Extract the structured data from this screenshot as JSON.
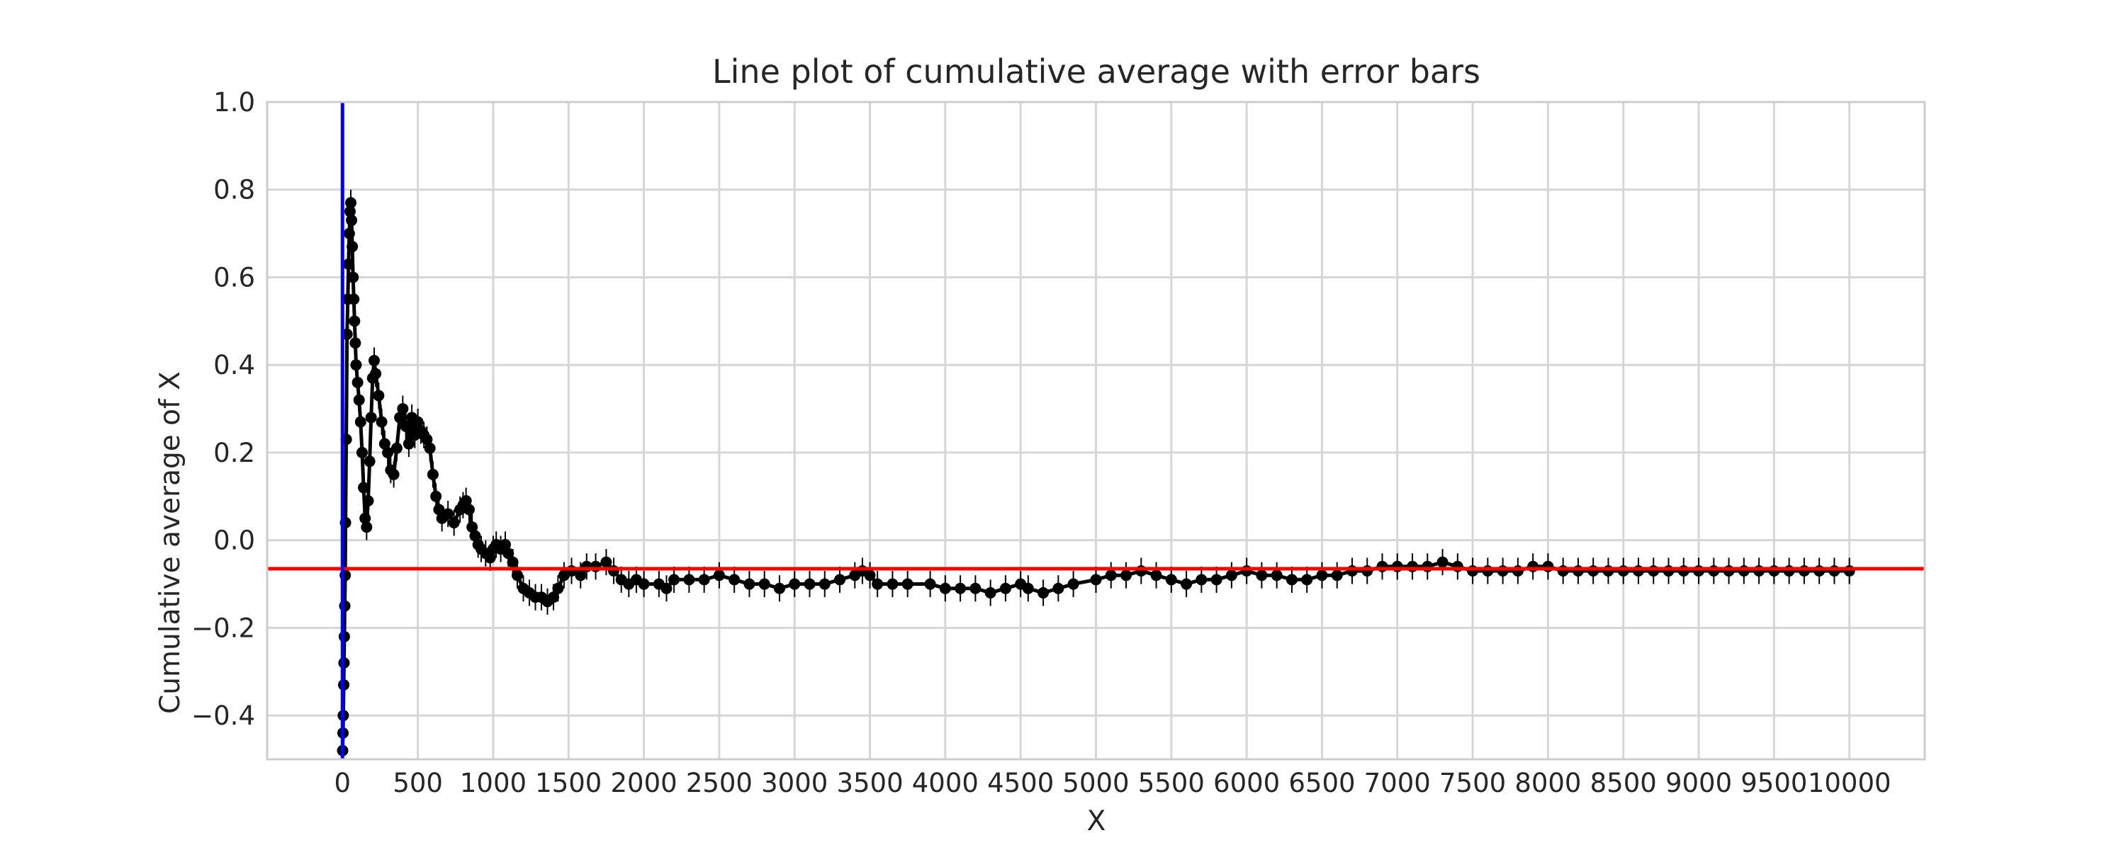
{
  "chart_data": {
    "type": "line",
    "title": "Line plot of cumulative average with error bars",
    "xlabel": "X",
    "ylabel": "Cumulative average of X",
    "xlim": [
      -500,
      10500
    ],
    "ylim": [
      -0.5,
      1.0
    ],
    "x_ticks": [
      0,
      500,
      1000,
      1500,
      2000,
      2500,
      3000,
      3500,
      4000,
      4500,
      5000,
      5500,
      6000,
      6500,
      7000,
      7500,
      8000,
      8500,
      9000,
      9500,
      10000
    ],
    "x_tick_labels": [
      "0",
      "500",
      "1000",
      "1500",
      "2000",
      "2500",
      "3000",
      "3500",
      "4000",
      "4500",
      "5000",
      "5500",
      "6000",
      "6500",
      "7000",
      "7500",
      "8000",
      "8500",
      "9000",
      "9500",
      "10000"
    ],
    "y_ticks": [
      -0.4,
      -0.2,
      0.0,
      0.2,
      0.4,
      0.6,
      0.8,
      1.0
    ],
    "y_tick_labels": [
      "−0.4",
      "−0.2",
      "0.0",
      "0.2",
      "0.4",
      "0.6",
      "0.8",
      "1.0"
    ],
    "grid": true,
    "series": [
      {
        "marker": "o",
        "color": "#000000",
        "error_bar_halfwidth": 0.03,
        "points": [
          [
            1,
            -0.48
          ],
          [
            3,
            -0.44
          ],
          [
            5,
            -0.4
          ],
          [
            8,
            -0.33
          ],
          [
            10,
            -0.28
          ],
          [
            12,
            -0.22
          ],
          [
            15,
            -0.15
          ],
          [
            18,
            -0.08
          ],
          [
            20,
            0.04
          ],
          [
            25,
            0.23
          ],
          [
            30,
            0.47
          ],
          [
            35,
            0.55
          ],
          [
            40,
            0.63
          ],
          [
            45,
            0.7
          ],
          [
            50,
            0.75
          ],
          [
            55,
            0.77
          ],
          [
            60,
            0.73
          ],
          [
            65,
            0.67
          ],
          [
            70,
            0.6
          ],
          [
            75,
            0.55
          ],
          [
            80,
            0.5
          ],
          [
            85,
            0.45
          ],
          [
            90,
            0.4
          ],
          [
            100,
            0.36
          ],
          [
            110,
            0.32
          ],
          [
            120,
            0.27
          ],
          [
            130,
            0.2
          ],
          [
            140,
            0.12
          ],
          [
            150,
            0.05
          ],
          [
            160,
            0.03
          ],
          [
            170,
            0.09
          ],
          [
            180,
            0.18
          ],
          [
            190,
            0.28
          ],
          [
            200,
            0.37
          ],
          [
            210,
            0.41
          ],
          [
            220,
            0.38
          ],
          [
            240,
            0.33
          ],
          [
            260,
            0.27
          ],
          [
            280,
            0.22
          ],
          [
            300,
            0.2
          ],
          [
            320,
            0.16
          ],
          [
            340,
            0.15
          ],
          [
            360,
            0.21
          ],
          [
            380,
            0.28
          ],
          [
            400,
            0.3
          ],
          [
            420,
            0.26
          ],
          [
            440,
            0.22
          ],
          [
            460,
            0.28
          ],
          [
            480,
            0.24
          ],
          [
            500,
            0.27
          ],
          [
            520,
            0.25
          ],
          [
            540,
            0.24
          ],
          [
            560,
            0.23
          ],
          [
            580,
            0.21
          ],
          [
            600,
            0.15
          ],
          [
            620,
            0.1
          ],
          [
            640,
            0.07
          ],
          [
            660,
            0.05
          ],
          [
            700,
            0.06
          ],
          [
            740,
            0.04
          ],
          [
            780,
            0.07
          ],
          [
            800,
            0.08
          ],
          [
            820,
            0.09
          ],
          [
            840,
            0.07
          ],
          [
            860,
            0.03
          ],
          [
            880,
            0.01
          ],
          [
            900,
            -0.01
          ],
          [
            920,
            -0.02
          ],
          [
            950,
            -0.03
          ],
          [
            980,
            -0.04
          ],
          [
            1000,
            -0.02
          ],
          [
            1020,
            -0.01
          ],
          [
            1050,
            -0.02
          ],
          [
            1080,
            -0.01
          ],
          [
            1100,
            -0.03
          ],
          [
            1130,
            -0.05
          ],
          [
            1160,
            -0.08
          ],
          [
            1200,
            -0.11
          ],
          [
            1240,
            -0.12
          ],
          [
            1280,
            -0.13
          ],
          [
            1320,
            -0.13
          ],
          [
            1360,
            -0.14
          ],
          [
            1400,
            -0.13
          ],
          [
            1430,
            -0.11
          ],
          [
            1470,
            -0.08
          ],
          [
            1520,
            -0.07
          ],
          [
            1580,
            -0.08
          ],
          [
            1620,
            -0.06
          ],
          [
            1680,
            -0.06
          ],
          [
            1750,
            -0.05
          ],
          [
            1800,
            -0.07
          ],
          [
            1850,
            -0.09
          ],
          [
            1900,
            -0.1
          ],
          [
            1950,
            -0.09
          ],
          [
            2000,
            -0.1
          ],
          [
            2100,
            -0.1
          ],
          [
            2150,
            -0.11
          ],
          [
            2200,
            -0.09
          ],
          [
            2300,
            -0.09
          ],
          [
            2400,
            -0.09
          ],
          [
            2500,
            -0.08
          ],
          [
            2600,
            -0.09
          ],
          [
            2700,
            -0.1
          ],
          [
            2800,
            -0.1
          ],
          [
            2900,
            -0.11
          ],
          [
            3000,
            -0.1
          ],
          [
            3100,
            -0.1
          ],
          [
            3200,
            -0.1
          ],
          [
            3300,
            -0.09
          ],
          [
            3400,
            -0.08
          ],
          [
            3450,
            -0.07
          ],
          [
            3500,
            -0.08
          ],
          [
            3550,
            -0.1
          ],
          [
            3650,
            -0.1
          ],
          [
            3750,
            -0.1
          ],
          [
            3900,
            -0.1
          ],
          [
            4000,
            -0.11
          ],
          [
            4100,
            -0.11
          ],
          [
            4200,
            -0.11
          ],
          [
            4300,
            -0.12
          ],
          [
            4400,
            -0.11
          ],
          [
            4500,
            -0.1
          ],
          [
            4550,
            -0.11
          ],
          [
            4650,
            -0.12
          ],
          [
            4750,
            -0.11
          ],
          [
            4850,
            -0.1
          ],
          [
            5000,
            -0.09
          ],
          [
            5100,
            -0.08
          ],
          [
            5200,
            -0.08
          ],
          [
            5300,
            -0.07
          ],
          [
            5400,
            -0.08
          ],
          [
            5500,
            -0.09
          ],
          [
            5600,
            -0.1
          ],
          [
            5700,
            -0.09
          ],
          [
            5800,
            -0.09
          ],
          [
            5900,
            -0.08
          ],
          [
            6000,
            -0.07
          ],
          [
            6100,
            -0.08
          ],
          [
            6200,
            -0.08
          ],
          [
            6300,
            -0.09
          ],
          [
            6400,
            -0.09
          ],
          [
            6500,
            -0.08
          ],
          [
            6600,
            -0.08
          ],
          [
            6700,
            -0.07
          ],
          [
            6800,
            -0.07
          ],
          [
            6900,
            -0.06
          ],
          [
            7000,
            -0.06
          ],
          [
            7100,
            -0.06
          ],
          [
            7200,
            -0.06
          ],
          [
            7300,
            -0.05
          ],
          [
            7400,
            -0.06
          ],
          [
            7500,
            -0.07
          ],
          [
            7600,
            -0.07
          ],
          [
            7700,
            -0.07
          ],
          [
            7800,
            -0.07
          ],
          [
            7900,
            -0.06
          ],
          [
            8000,
            -0.06
          ],
          [
            8100,
            -0.07
          ],
          [
            8200,
            -0.07
          ],
          [
            8300,
            -0.07
          ],
          [
            8400,
            -0.07
          ],
          [
            8500,
            -0.07
          ],
          [
            8600,
            -0.07
          ],
          [
            8700,
            -0.07
          ],
          [
            8800,
            -0.07
          ],
          [
            8900,
            -0.07
          ],
          [
            9000,
            -0.07
          ],
          [
            9100,
            -0.07
          ],
          [
            9200,
            -0.07
          ],
          [
            9300,
            -0.07
          ],
          [
            9400,
            -0.07
          ],
          [
            9500,
            -0.07
          ],
          [
            9600,
            -0.07
          ],
          [
            9700,
            -0.07
          ],
          [
            9800,
            -0.07
          ],
          [
            9900,
            -0.07
          ],
          [
            10000,
            -0.07
          ]
        ]
      }
    ],
    "reference_lines": [
      {
        "orientation": "horizontal",
        "value": -0.065,
        "color": "#ff0000"
      },
      {
        "orientation": "vertical",
        "value": 0,
        "color": "#0000ff"
      }
    ]
  }
}
